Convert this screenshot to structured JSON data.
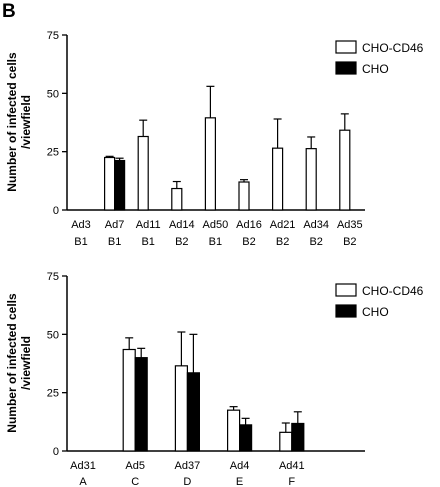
{
  "panel_label": "B",
  "chart_data": [
    {
      "type": "bar",
      "ylabel": "Number of infected cells\n/viewfield",
      "ylim": [
        0,
        75
      ],
      "yticks": [
        0,
        25,
        50,
        75
      ],
      "grid": false,
      "legend": "top-right",
      "categories": [
        "Ad3",
        "Ad7",
        "Ad11",
        "Ad14",
        "Ad50",
        "Ad16",
        "Ad21",
        "Ad34",
        "Ad35"
      ],
      "subcategories": [
        "B1",
        "B1",
        "B1",
        "B2",
        "B1",
        "B2",
        "B2",
        "B2",
        "B2"
      ],
      "series": [
        {
          "name": "CHO-CD46",
          "color": "#ffffff",
          "values": [
            0,
            22.5,
            31.5,
            9.2,
            39.5,
            12,
            26.5,
            26.3,
            34.2
          ],
          "errors": [
            0,
            0.5,
            7,
            3,
            13.5,
            1,
            12.5,
            5,
            7
          ]
        },
        {
          "name": "CHO",
          "color": "#000000",
          "values": [
            0,
            21.2,
            null,
            null,
            null,
            null,
            null,
            null,
            null
          ],
          "errors": [
            0,
            1,
            null,
            null,
            null,
            null,
            null,
            null,
            null
          ]
        }
      ]
    },
    {
      "type": "bar",
      "ylabel": "Number of infected cells\n/viewfield",
      "ylim": [
        0,
        75
      ],
      "yticks": [
        0,
        25,
        50,
        75
      ],
      "grid": false,
      "legend": "top-right",
      "categories": [
        "Ad31",
        "Ad5",
        "Ad37",
        "Ad4",
        "Ad41"
      ],
      "subcategories": [
        "A",
        "C",
        "D",
        "E",
        "F"
      ],
      "series": [
        {
          "name": "CHO-CD46",
          "color": "#ffffff",
          "values": [
            0,
            43.5,
            36.5,
            17.5,
            8
          ],
          "errors": [
            0,
            5,
            14.5,
            1.5,
            4
          ]
        },
        {
          "name": "CHO",
          "color": "#000000",
          "values": [
            0,
            40,
            33.5,
            11.2,
            11.8
          ],
          "errors": [
            0,
            4,
            16.5,
            2.8,
            5
          ]
        }
      ]
    }
  ]
}
